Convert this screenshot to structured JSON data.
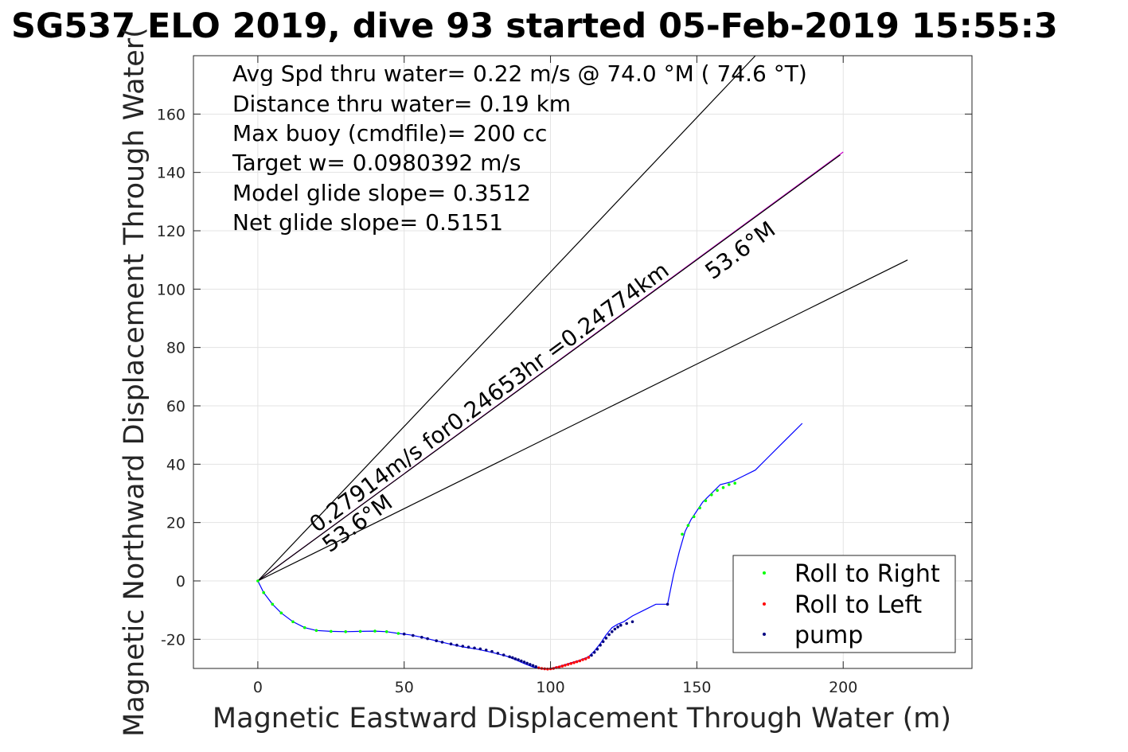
{
  "chart_data": {
    "type": "line",
    "title": "SG537 ELO 2019, dive 93 started 05-Feb-2019 15:55:3",
    "xlabel": "Magnetic Eastward Displacement Through Water (m)",
    "ylabel": "Magnetic Northward Displacement Through Water(",
    "xlim": [
      -22,
      244
    ],
    "ylim": [
      -30,
      180
    ],
    "xticks": [
      0,
      50,
      100,
      150,
      200
    ],
    "yticks": [
      -20,
      0,
      20,
      40,
      60,
      80,
      100,
      120,
      140,
      160
    ],
    "grid": true,
    "annotations": [
      "Avg Spd thru water=  0.22 m/s @  74.0 °M ( 74.6 °T)",
      "Distance thru water=  0.19 km",
      "Max buoy (cmdfile)= 200 cc",
      "Target w= 0.0980392 m/s",
      "Model glide slope= 0.3512",
      "Net glide slope= 0.5151"
    ],
    "line_labels": {
      "speed": "0.27914m/s for0.24653hr =0.24774km",
      "heading_upper": "53.6°M",
      "heading_lower": "53.6°M"
    },
    "reference_lines": [
      {
        "color": "#000000",
        "x": [
          0,
          170
        ],
        "y": [
          0,
          180
        ]
      },
      {
        "color": "#000000",
        "x": [
          0,
          222
        ],
        "y": [
          0,
          110
        ]
      },
      {
        "color": "#cc00cc",
        "x": [
          0,
          200
        ],
        "y": [
          0,
          147
        ]
      },
      {
        "color": "#000000",
        "x": [
          0,
          199
        ],
        "y": [
          0,
          146
        ]
      }
    ],
    "track": {
      "color": "#0000ff",
      "x": [
        0,
        2,
        5,
        8,
        12,
        16,
        20,
        25,
        30,
        35,
        40,
        44,
        48,
        52,
        56,
        60,
        65,
        70,
        75,
        80,
        85,
        88,
        91,
        94,
        96,
        98,
        100,
        102,
        104,
        107,
        110,
        113,
        115,
        117,
        119,
        121,
        123,
        125,
        128,
        132,
        136,
        140,
        142,
        144,
        146,
        148,
        150,
        152,
        155,
        158,
        162,
        166,
        170,
        174,
        178,
        182,
        186
      ],
      "y": [
        0,
        -4,
        -8,
        -11,
        -14,
        -16,
        -17,
        -17.3,
        -17.4,
        -17.3,
        -17.2,
        -17.4,
        -18,
        -18.5,
        -19.3,
        -20.3,
        -21.5,
        -22.6,
        -23.4,
        -24.5,
        -25.8,
        -27,
        -28.3,
        -29.5,
        -30,
        -30.2,
        -30,
        -29.6,
        -29,
        -28.1,
        -27.2,
        -26,
        -24,
        -21.5,
        -18.5,
        -16,
        -14.8,
        -14,
        -12,
        -10,
        -8,
        -8,
        2,
        10,
        17,
        21,
        24,
        27,
        30,
        33,
        34,
        36,
        38,
        42,
        46,
        50,
        54
      ]
    },
    "series": [
      {
        "name": "Roll to Right",
        "color": "#00ff00",
        "x": [
          0,
          2,
          5,
          8,
          12,
          16,
          20,
          25,
          30,
          35,
          40,
          44,
          48,
          145,
          147,
          149,
          151,
          153,
          155,
          157,
          159,
          161,
          163
        ],
        "y": [
          0,
          -4,
          -8,
          -11,
          -14,
          -16,
          -17,
          -17.3,
          -17.4,
          -17.3,
          -17.2,
          -17.4,
          -18,
          16,
          19,
          22,
          25,
          27.5,
          29.5,
          31,
          32,
          33,
          33.5
        ]
      },
      {
        "name": "Roll to Left",
        "color": "#ff0000",
        "x": [
          96,
          97,
          98,
          99,
          100,
          101,
          102,
          103,
          104,
          105,
          106,
          107,
          108,
          109,
          110,
          111,
          112,
          113
        ],
        "y": [
          -29.8,
          -30,
          -30.1,
          -30.2,
          -30.1,
          -30,
          -29.7,
          -29.5,
          -29.2,
          -28.9,
          -28.6,
          -28.3,
          -28,
          -27.7,
          -27.4,
          -27,
          -26.7,
          -26.2
        ]
      },
      {
        "name": "pump",
        "color": "#000080",
        "x": [
          50,
          53,
          56,
          58,
          61,
          63,
          66,
          68,
          70,
          72,
          74,
          76,
          78,
          80,
          82,
          84,
          86,
          87,
          88,
          89,
          90,
          91,
          92,
          93,
          94,
          95,
          114,
          115,
          116,
          117,
          118,
          119,
          120,
          121,
          122,
          123,
          124,
          126,
          128,
          140
        ],
        "y": [
          -18.2,
          -18.7,
          -19.3,
          -19.8,
          -20.5,
          -21,
          -21.6,
          -22,
          -22.4,
          -22.7,
          -23,
          -23.3,
          -23.7,
          -24.2,
          -24.8,
          -25.4,
          -26,
          -26.3,
          -26.7,
          -27,
          -27.4,
          -27.8,
          -28.2,
          -28.6,
          -29,
          -29.4,
          -25.5,
          -24.5,
          -23.4,
          -22,
          -20.8,
          -19.6,
          -18.4,
          -17.4,
          -16.5,
          -15.8,
          -15.2,
          -14.6,
          -14,
          -8
        ]
      }
    ],
    "legend": {
      "position": "bottom-right",
      "entries": [
        "Roll to Right",
        "Roll to Left",
        "pump"
      ]
    }
  }
}
